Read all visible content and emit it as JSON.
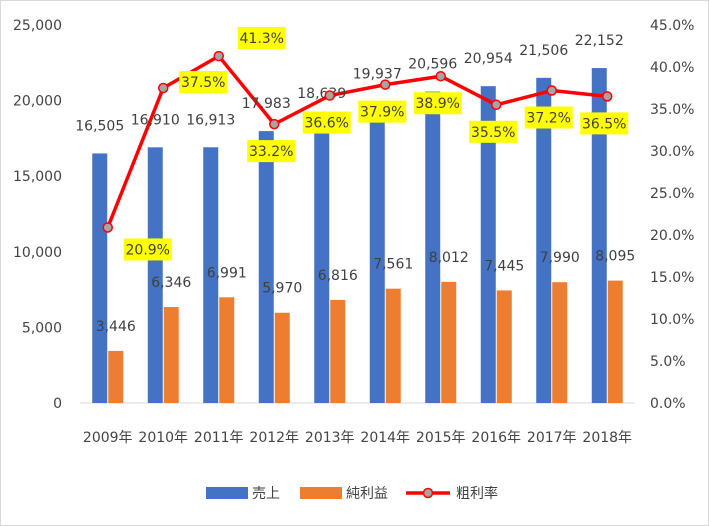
{
  "chart_data": {
    "type": "bar",
    "title": "",
    "categories": [
      "2009年",
      "2010年",
      "2011年",
      "2012年",
      "2013年",
      "2014年",
      "2015年",
      "2016年",
      "2017年",
      "2018年"
    ],
    "series": [
      {
        "name": "売上",
        "kind": "bar",
        "axis": "left",
        "color": "#4472C4",
        "values": [
          16505,
          16910,
          16913,
          17983,
          18639,
          19937,
          20596,
          20954,
          21506,
          22152
        ],
        "labels": [
          "16,505",
          "16,910",
          "16,913",
          "17,983",
          "18,639",
          "19,937",
          "20,596",
          "20,954",
          "21,506",
          "22,152"
        ]
      },
      {
        "name": "純利益",
        "kind": "bar",
        "axis": "left",
        "color": "#ED7D31",
        "values": [
          3446,
          6346,
          6991,
          5970,
          6816,
          7561,
          8012,
          7445,
          7990,
          8095
        ],
        "labels": [
          "3,446",
          "6,346",
          "6,991",
          "5,970",
          "6,816",
          "7,561",
          "8,012",
          "7,445",
          "7,990",
          "8,095"
        ]
      },
      {
        "name": "粗利率",
        "kind": "line",
        "axis": "right",
        "color": "#FF0000",
        "marker_color": "#A5A5A5",
        "label_bg": "#FFFF00",
        "values": [
          20.9,
          37.5,
          41.3,
          33.2,
          36.6,
          37.9,
          38.9,
          35.5,
          37.2,
          36.5
        ],
        "labels": [
          "20.9%",
          "37.5%",
          "41.3%",
          "33.2%",
          "36.6%",
          "37.9%",
          "38.9%",
          "35.5%",
          "37.2%",
          "36.5%"
        ]
      }
    ],
    "y_left": {
      "min": 0,
      "max": 25000,
      "step": 5000,
      "ticks": [
        "0",
        "5,000",
        "10,000",
        "15,000",
        "20,000",
        "25,000"
      ]
    },
    "y_right": {
      "min": 0,
      "max": 45,
      "step": 5,
      "ticks": [
        "0.0%",
        "5.0%",
        "10.0%",
        "15.0%",
        "20.0%",
        "25.0%",
        "30.0%",
        "35.0%",
        "40.0%",
        "45.0%"
      ]
    },
    "grid": false,
    "legend": {
      "position": "bottom",
      "entries": [
        "売上",
        "純利益",
        "粗利率"
      ]
    }
  }
}
